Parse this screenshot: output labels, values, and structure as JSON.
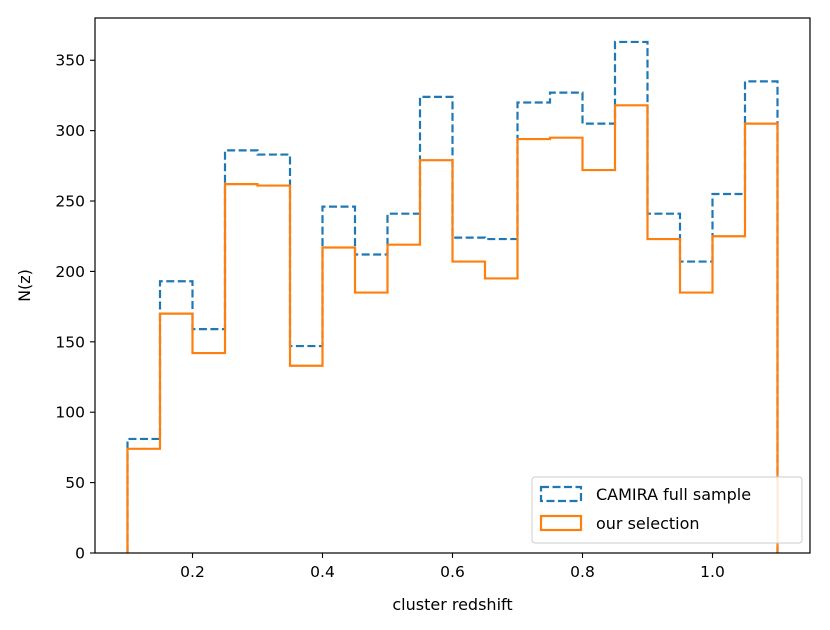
{
  "chart_data": {
    "type": "histogram",
    "xlabel": "cluster redshift",
    "ylabel": "N(z)",
    "xlim": [
      0.05,
      1.15
    ],
    "ylim": [
      0,
      380
    ],
    "bin_edges": [
      0.1,
      0.15,
      0.2,
      0.25,
      0.3,
      0.35,
      0.4,
      0.45,
      0.5,
      0.55,
      0.6,
      0.65,
      0.7,
      0.75,
      0.8,
      0.85,
      0.9,
      0.95,
      1.0,
      1.05,
      1.1
    ],
    "series": [
      {
        "name": "CAMIRA full sample",
        "color": "#1f77b4",
        "linestyle": "dashed",
        "values": [
          81,
          193,
          159,
          286,
          283,
          147,
          246,
          212,
          241,
          324,
          224,
          223,
          320,
          327,
          305,
          363,
          241,
          207,
          255,
          335
        ]
      },
      {
        "name": "our selection",
        "color": "#ff7f0e",
        "linestyle": "solid",
        "values": [
          74,
          170,
          142,
          262,
          261,
          133,
          217,
          185,
          219,
          279,
          207,
          195,
          294,
          295,
          272,
          318,
          223,
          185,
          225,
          305
        ]
      }
    ],
    "xticks": [
      0.2,
      0.4,
      0.6,
      0.8,
      1.0
    ],
    "xtick_labels": [
      "0.2",
      "0.4",
      "0.6",
      "0.8",
      "1.0"
    ],
    "yticks": [
      0,
      50,
      100,
      150,
      200,
      250,
      300,
      350
    ],
    "ytick_labels": [
      "0",
      "50",
      "100",
      "150",
      "200",
      "250",
      "300",
      "350"
    ],
    "legend": {
      "location": "lower-right",
      "entries": [
        "CAMIRA full sample",
        "our selection"
      ]
    },
    "grid": false
  }
}
